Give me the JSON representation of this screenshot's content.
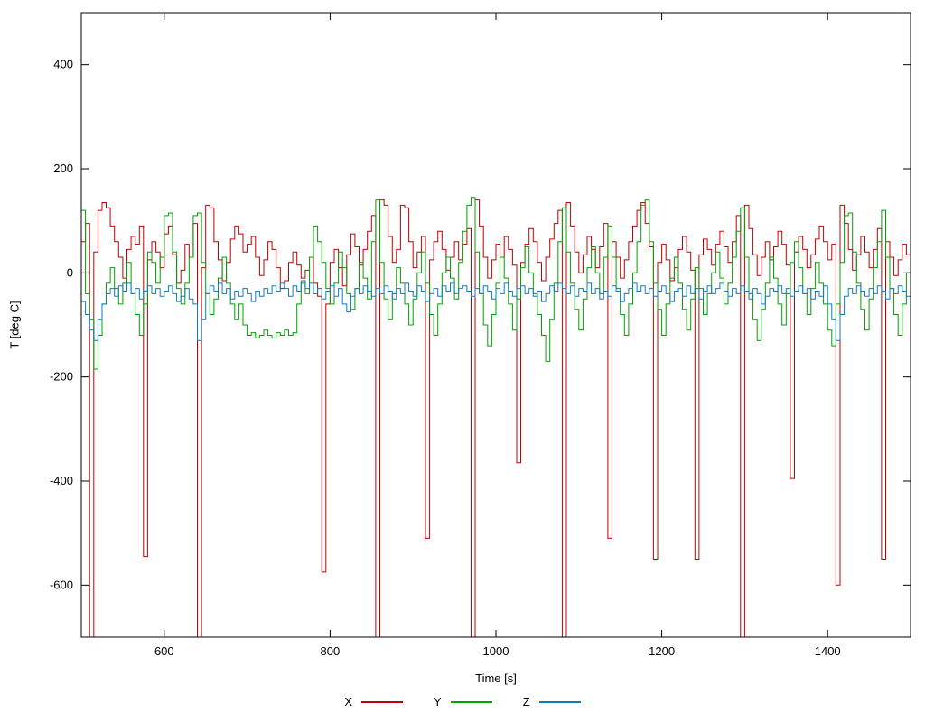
{
  "chart_data": {
    "type": "line",
    "mode": "steps",
    "title": "",
    "xlabel": "Time [s]",
    "ylabel": "T [deg C]",
    "xlim": [
      500,
      1500
    ],
    "ylim": [
      -700,
      500
    ],
    "xticks": [
      600,
      800,
      1000,
      1200,
      1400
    ],
    "yticks": [
      -600,
      -400,
      -200,
      0,
      200,
      400
    ],
    "grid": false,
    "legend_position": "bottom-center",
    "background": "#ffffff",
    "axis_color": "#000000",
    "x_start": 500,
    "x_step": 5,
    "series": [
      {
        "name": "X",
        "color": "#c00000",
        "values": [
          60,
          95,
          -720,
          40,
          120,
          135,
          125,
          90,
          60,
          30,
          -10,
          45,
          70,
          55,
          90,
          -545,
          25,
          60,
          40,
          10,
          75,
          90,
          35,
          -20,
          5,
          55,
          30,
          95,
          -720,
          10,
          130,
          125,
          60,
          25,
          -15,
          20,
          65,
          90,
          75,
          40,
          55,
          70,
          30,
          -5,
          25,
          60,
          45,
          10,
          -30,
          -15,
          20,
          40,
          15,
          -10,
          5,
          30,
          -20,
          -45,
          -575,
          -60,
          20,
          45,
          10,
          -25,
          35,
          75,
          50,
          15,
          45,
          80,
          110,
          -720,
          140,
          130,
          70,
          20,
          45,
          130,
          125,
          60,
          10,
          40,
          70,
          -510,
          25,
          60,
          80,
          45,
          5,
          30,
          60,
          25,
          55,
          85,
          -720,
          140,
          90,
          30,
          -10,
          25,
          55,
          30,
          70,
          45,
          15,
          -365,
          20,
          55,
          85,
          60,
          20,
          -15,
          30,
          65,
          95,
          120,
          -720,
          135,
          90,
          40,
          0,
          35,
          70,
          45,
          10,
          50,
          95,
          -510,
          60,
          30,
          -10,
          25,
          60,
          90,
          120,
          135,
          95,
          50,
          -550,
          20,
          55,
          25,
          -15,
          10,
          45,
          70,
          40,
          5,
          -550,
          35,
          65,
          45,
          15,
          55,
          80,
          50,
          20,
          60,
          110,
          -720,
          130,
          85,
          35,
          -5,
          30,
          60,
          25,
          50,
          80,
          55,
          15,
          -395,
          40,
          70,
          45,
          10,
          35,
          65,
          90,
          60,
          25,
          55,
          -600,
          130,
          95,
          45,
          5,
          35,
          70,
          40,
          10,
          45,
          85,
          -550,
          60,
          30,
          -5,
          25,
          55,
          35,
          65
        ]
      },
      {
        "name": "Y",
        "color": "#00a000",
        "values": [
          120,
          -40,
          -90,
          -185,
          -120,
          -60,
          -20,
          10,
          -30,
          -60,
          -20,
          20,
          -40,
          -80,
          -120,
          -60,
          40,
          20,
          -20,
          30,
          110,
          115,
          40,
          -30,
          -60,
          -20,
          30,
          110,
          115,
          20,
          -40,
          -80,
          -50,
          -10,
          30,
          -20,
          -60,
          -90,
          -60,
          -100,
          -120,
          -115,
          -125,
          -120,
          -110,
          -120,
          -125,
          -115,
          -120,
          -110,
          -120,
          -115,
          -60,
          -20,
          -40,
          30,
          90,
          60,
          20,
          -30,
          -60,
          -20,
          40,
          10,
          -40,
          -70,
          -30,
          20,
          -10,
          -50,
          60,
          140,
          20,
          -50,
          -90,
          -40,
          10,
          -20,
          -60,
          -100,
          -50,
          0,
          40,
          -20,
          -80,
          -120,
          -60,
          0,
          30,
          -10,
          -50,
          20,
          80,
          130,
          145,
          40,
          -40,
          -100,
          -140,
          -80,
          -20,
          30,
          -10,
          -60,
          -110,
          -50,
          10,
          50,
          0,
          -40,
          -80,
          -120,
          -170,
          -90,
          -20,
          60,
          125,
          40,
          -20,
          -70,
          -110,
          -50,
          10,
          50,
          0,
          -40,
          30,
          90,
          30,
          -30,
          -80,
          -120,
          -60,
          0,
          60,
          130,
          140,
          60,
          -20,
          -70,
          -120,
          -60,
          -10,
          30,
          -20,
          -70,
          -110,
          -50,
          10,
          -30,
          -80,
          -40,
          0,
          40,
          -10,
          -60,
          -20,
          30,
          80,
          125,
          30,
          -40,
          -90,
          -130,
          -70,
          -20,
          30,
          -10,
          -60,
          -100,
          -40,
          20,
          60,
          10,
          -40,
          -80,
          -30,
          20,
          -20,
          -60,
          -110,
          -140,
          -60,
          20,
          110,
          115,
          40,
          -20,
          -70,
          -110,
          -50,
          10,
          60,
          120,
          30,
          -30,
          -80,
          -120,
          -60,
          0,
          60
        ]
      },
      {
        "name": "Z",
        "color": "#0e7ac4",
        "values": [
          -55,
          -80,
          -110,
          -130,
          -90,
          -60,
          -40,
          -30,
          -45,
          -25,
          -35,
          -20,
          -40,
          -30,
          -50,
          -35,
          -25,
          -40,
          -30,
          -45,
          -35,
          -25,
          -40,
          -55,
          -45,
          -30,
          -50,
          -60,
          -130,
          -90,
          -40,
          -25,
          -35,
          -20,
          -40,
          -30,
          -50,
          -35,
          -45,
          -30,
          -40,
          -55,
          -35,
          -45,
          -30,
          -40,
          -25,
          -35,
          -20,
          -30,
          -45,
          -25,
          -35,
          -15,
          -30,
          -20,
          -40,
          -30,
          -50,
          -35,
          -25,
          -45,
          -30,
          -60,
          -75,
          -45,
          -30,
          -40,
          -25,
          -35,
          -45,
          -30,
          -40,
          -25,
          -35,
          -50,
          -30,
          -40,
          -20,
          -35,
          -45,
          -25,
          -35,
          -55,
          -40,
          -30,
          -45,
          -25,
          -35,
          -20,
          -40,
          -30,
          -25,
          -35,
          -45,
          -30,
          -40,
          -25,
          -35,
          -50,
          -30,
          -40,
          -20,
          -35,
          -45,
          -30,
          -25,
          -40,
          -30,
          -45,
          -35,
          -55,
          -40,
          -25,
          -35,
          -20,
          -30,
          -40,
          -25,
          -45,
          -30,
          -35,
          -20,
          -40,
          -30,
          -50,
          -35,
          -45,
          -25,
          -35,
          -55,
          -40,
          -30,
          -20,
          -35,
          -25,
          -40,
          -30,
          -45,
          -35,
          -25,
          -40,
          -55,
          -35,
          -30,
          -45,
          -25,
          -40,
          -30,
          -50,
          -35,
          -25,
          -40,
          -30,
          -20,
          -35,
          -45,
          -30,
          -40,
          -25,
          -35,
          -50,
          -30,
          -40,
          -60,
          -45,
          -30,
          -35,
          -25,
          -40,
          -30,
          -45,
          -35,
          -25,
          -40,
          -30,
          -50,
          -35,
          -45,
          -25,
          -60,
          -90,
          -130,
          -80,
          -45,
          -30,
          -40,
          -25,
          -35,
          -45,
          -30,
          -40,
          -25,
          -35,
          -50,
          -30,
          -40,
          -25,
          -35,
          -45,
          -30
        ]
      }
    ]
  }
}
